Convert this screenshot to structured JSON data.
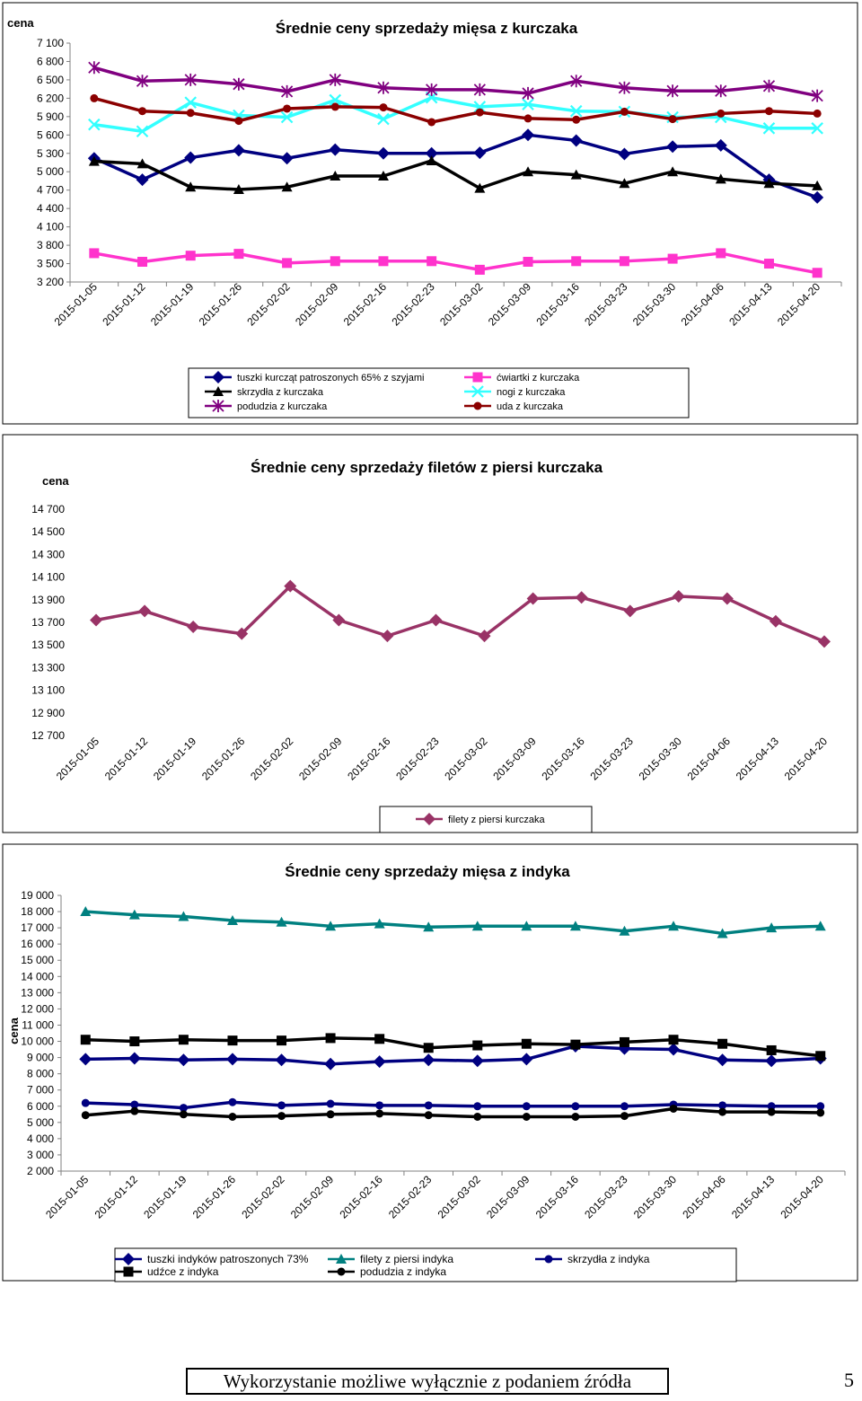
{
  "chart_data": [
    {
      "type": "line",
      "title": "Średnie ceny sprzedaży mięsa z kurczaka",
      "ylabel": "cena",
      "xlabel": "",
      "ylim": [
        3200,
        7100
      ],
      "yticks": [
        "7 100",
        "6 800",
        "6 500",
        "6 200",
        "5 900",
        "5 600",
        "5 300",
        "5 000",
        "4 700",
        "4 400",
        "4 100",
        "3 800",
        "3 500",
        "3 200"
      ],
      "categories": [
        "2015-01-05",
        "2015-01-12",
        "2015-01-19",
        "2015-01-26",
        "2015-02-02",
        "2015-02-09",
        "2015-02-16",
        "2015-02-23",
        "2015-03-02",
        "2015-03-09",
        "2015-03-16",
        "2015-03-23",
        "2015-03-30",
        "2015-04-06",
        "2015-04-13",
        "2015-04-20"
      ],
      "series": [
        {
          "name": "tuszki kurcząt patroszonych 65% z szyjami",
          "color": "#000080",
          "marker": "diamond",
          "values": [
            5220,
            4870,
            5230,
            5350,
            5220,
            5360,
            5300,
            5300,
            5310,
            5600,
            5510,
            5290,
            5410,
            5430,
            4870,
            4580
          ]
        },
        {
          "name": "ćwiartki z kurczaka",
          "color": "#ff33cc",
          "marker": "square",
          "values": [
            3670,
            3530,
            3630,
            3660,
            3510,
            3540,
            3540,
            3540,
            3400,
            3530,
            3540,
            3540,
            3580,
            3670,
            3500,
            3350
          ]
        },
        {
          "name": "skrzydła z kurczaka",
          "color": "#000000",
          "marker": "triangle",
          "values": [
            5170,
            5130,
            4750,
            4710,
            4750,
            4930,
            4930,
            5180,
            4730,
            5000,
            4950,
            4810,
            5000,
            4880,
            4810,
            4770
          ]
        },
        {
          "name": "nogi z kurczaka",
          "color": "#33ffff",
          "marker": "x",
          "values": [
            5770,
            5660,
            6130,
            5920,
            5890,
            6170,
            5860,
            6210,
            6060,
            6100,
            5990,
            5980,
            5890,
            5890,
            5710,
            5710
          ]
        },
        {
          "name": "podudzia z kurczaka",
          "color": "#800080",
          "marker": "star",
          "values": [
            6700,
            6480,
            6500,
            6430,
            6310,
            6500,
            6370,
            6340,
            6340,
            6280,
            6480,
            6370,
            6320,
            6320,
            6400,
            6240
          ]
        },
        {
          "name": "uda z kurczaka",
          "color": "#8b0000",
          "marker": "circle",
          "values": [
            6200,
            5990,
            5960,
            5830,
            6030,
            6060,
            6050,
            5810,
            5970,
            5870,
            5850,
            5980,
            5860,
            5950,
            5990,
            5950
          ]
        }
      ]
    },
    {
      "type": "line",
      "title": "Średnie ceny sprzedaży filetów z piersi kurczaka",
      "ylabel": "cena",
      "xlabel": "",
      "ylim": [
        12700,
        14700
      ],
      "yticks": [
        "14 700",
        "14 500",
        "14 300",
        "14 100",
        "13 900",
        "13 700",
        "13 500",
        "13 300",
        "13 100",
        "12 900",
        "12 700"
      ],
      "categories": [
        "2015-01-05",
        "2015-01-12",
        "2015-01-19",
        "2015-01-26",
        "2015-02-02",
        "2015-02-09",
        "2015-02-16",
        "2015-02-23",
        "2015-03-02",
        "2015-03-09",
        "2015-03-16",
        "2015-03-23",
        "2015-03-30",
        "2015-04-06",
        "2015-04-13",
        "2015-04-20"
      ],
      "series": [
        {
          "name": "filety z piersi kurczaka",
          "color": "#993366",
          "marker": "diamond",
          "values": [
            13720,
            13800,
            13660,
            13600,
            14020,
            13720,
            13580,
            13720,
            13580,
            13910,
            13920,
            13800,
            13930,
            13910,
            13710,
            13530
          ]
        }
      ]
    },
    {
      "type": "line",
      "title": "Średnie ceny sprzedaży mięsa z indyka",
      "ylabel": "cena",
      "xlabel": "",
      "ylim": [
        2000,
        19000
      ],
      "yticks": [
        "19 000",
        "18 000",
        "17 000",
        "16 000",
        "15 000",
        "14 000",
        "13 000",
        "12 000",
        "11 000",
        "10 000",
        "9 000",
        "8 000",
        "7 000",
        "6 000",
        "5 000",
        "4 000",
        "3 000",
        "2 000"
      ],
      "categories": [
        "2015-01-05",
        "2015-01-12",
        "2015-01-19",
        "2015-01-26",
        "2015-02-02",
        "2015-02-09",
        "2015-02-16",
        "2015-02-23",
        "2015-03-02",
        "2015-03-09",
        "2015-03-16",
        "2015-03-23",
        "2015-03-30",
        "2015-04-06",
        "2015-04-13",
        "2015-04-20"
      ],
      "series": [
        {
          "name": "tuszki indyków patroszonych 73%",
          "color": "#000080",
          "marker": "diamond",
          "values": [
            8900,
            8950,
            8850,
            8900,
            8850,
            8600,
            8750,
            8850,
            8800,
            8900,
            9700,
            9550,
            9500,
            8850,
            8800,
            8950
          ]
        },
        {
          "name": "filety z piersi indyka",
          "color": "#008080",
          "marker": "triangle",
          "values": [
            18000,
            17800,
            17700,
            17450,
            17350,
            17100,
            17250,
            17050,
            17100,
            17100,
            17100,
            16800,
            17100,
            16650,
            17000,
            17100
          ]
        },
        {
          "name": "skrzydła z indyka",
          "color": "#000080",
          "marker": "circle",
          "values": [
            6200,
            6100,
            5900,
            6250,
            6050,
            6150,
            6050,
            6050,
            6000,
            6000,
            6000,
            6000,
            6100,
            6050,
            6000,
            6000
          ]
        },
        {
          "name": "udźce z indyka",
          "color": "#000000",
          "marker": "square",
          "values": [
            10100,
            10000,
            10100,
            10050,
            10050,
            10200,
            10150,
            9600,
            9750,
            9850,
            9800,
            9950,
            10100,
            9850,
            9450,
            9100
          ]
        },
        {
          "name": "podudzia z indyka",
          "color": "#000000",
          "marker": "circle",
          "values": [
            5450,
            5700,
            5500,
            5350,
            5400,
            5500,
            5550,
            5450,
            5350,
            5350,
            5350,
            5400,
            5850,
            5650,
            5650,
            5600
          ]
        }
      ]
    }
  ],
  "footer": {
    "text": "Wykorzystanie możliwe wyłącznie z podaniem źródła",
    "page": "5"
  }
}
